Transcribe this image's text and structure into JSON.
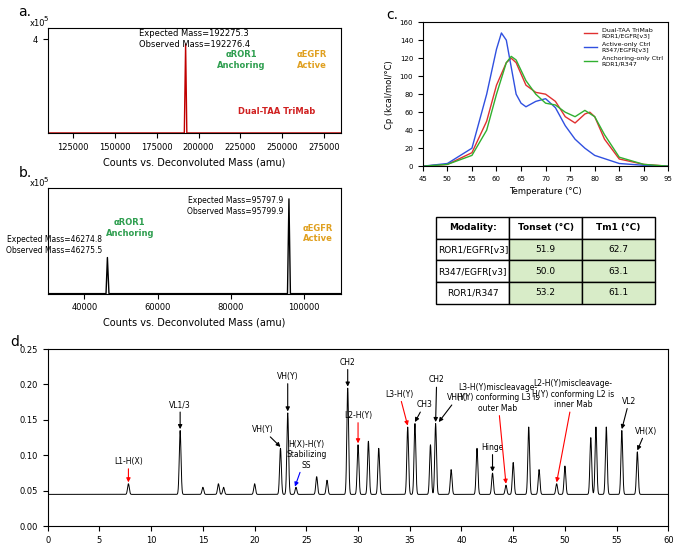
{
  "chart_data": [
    {
      "panel": "a.",
      "type": "line",
      "x": [
        110000,
        191500,
        192276.4,
        193000,
        285000
      ],
      "values": [
        0,
        0,
        3.8,
        0,
        0
      ],
      "color": "#c00000",
      "xlim": [
        110000,
        285000
      ],
      "xticks": [
        125000,
        150000,
        175000,
        200000,
        225000,
        250000,
        275000
      ],
      "ylim": [
        0,
        4.5
      ],
      "yticks": [
        4
      ],
      "xlabel": "Counts vs. Deconvoluted Mass (amu)",
      "y_scale_label": "x10",
      "y_scale_exponent": "5",
      "annotations": [
        "Expected Mass=192275.3",
        "Observed Mass=192276.4"
      ],
      "labels": [
        {
          "text": "αROR1\nAnchoring",
          "color": "#2e9e4f"
        },
        {
          "text": "αEGFR\nActive",
          "color": "#e0a020"
        },
        {
          "text": "Dual-TAA TriMab",
          "color": "#d02020"
        }
      ]
    },
    {
      "panel": "b.",
      "type": "line",
      "x": [
        30000,
        45900,
        46275.5,
        46700,
        95400,
        95799.9,
        96200,
        110000
      ],
      "values": [
        0,
        0,
        2.4,
        0,
        0,
        6.3,
        0,
        0
      ],
      "color": "#000000",
      "xlim": [
        30000,
        110000
      ],
      "xticks": [
        40000,
        60000,
        80000,
        100000
      ],
      "ylim": [
        0,
        7
      ],
      "yticks": [],
      "xlabel": "Counts vs. Deconvoluted Mass (amu)",
      "y_scale_label": "x10",
      "y_scale_exponent": "5",
      "peak_annotations": [
        {
          "x": 46275.5,
          "y": 2.4,
          "text": "Expected Mass=46274.8\nObserved Mass=46275.5"
        },
        {
          "x": 95799.9,
          "y": 6.3,
          "text": "Expected Mass=95797.9\nObserved Mass=95799.9"
        }
      ],
      "labels": [
        {
          "text": "αROR1\nAnchoring",
          "color": "#2e9e4f"
        },
        {
          "text": "αEGFR\nActive",
          "color": "#e0a020"
        }
      ]
    },
    {
      "panel": "c.",
      "type": "line",
      "xlabel": "Temperature (°C)",
      "ylabel": "Cp (kcal/mol/°C)",
      "xlim": [
        45,
        95
      ],
      "xticks": [
        45,
        50,
        55,
        60,
        65,
        70,
        75,
        80,
        85,
        90,
        95
      ],
      "ylim": [
        0,
        160
      ],
      "yticks": [
        0,
        20,
        40,
        60,
        80,
        100,
        120,
        140,
        160
      ],
      "legend": "upper right",
      "series": [
        {
          "name": "Dual-TAA TriMab\nROR1/EGFR[v3]",
          "color": "#e03030",
          "x": [
            45,
            50,
            55,
            58,
            60,
            62,
            63,
            64,
            66,
            68,
            70,
            72,
            74,
            76,
            78,
            79,
            80,
            82,
            85,
            90,
            95
          ],
          "values": [
            0,
            2,
            15,
            50,
            90,
            115,
            120,
            115,
            90,
            82,
            80,
            72,
            55,
            48,
            58,
            60,
            55,
            30,
            8,
            2,
            0
          ]
        },
        {
          "name": "Active-only Ctrl\nR347/EGFR[v3]",
          "color": "#3050e0",
          "x": [
            45,
            50,
            55,
            58,
            60,
            61,
            62,
            63,
            64,
            65,
            66,
            68,
            70,
            72,
            74,
            76,
            78,
            80,
            85,
            90,
            95
          ],
          "values": [
            0,
            3,
            20,
            80,
            130,
            148,
            140,
            110,
            80,
            70,
            66,
            72,
            75,
            65,
            45,
            30,
            20,
            12,
            3,
            1,
            0
          ]
        },
        {
          "name": "Anchoring-only Ctrl\nROR1/R347",
          "color": "#30b030",
          "x": [
            45,
            50,
            55,
            58,
            60,
            62,
            63,
            64,
            66,
            68,
            70,
            72,
            74,
            76,
            78,
            80,
            82,
            85,
            90,
            95
          ],
          "values": [
            0,
            2,
            12,
            40,
            80,
            115,
            122,
            118,
            95,
            80,
            70,
            68,
            60,
            55,
            62,
            55,
            35,
            10,
            2,
            0
          ]
        }
      ]
    },
    {
      "panel": "d.",
      "type": "line",
      "baseline": 0.045,
      "xlim": [
        0,
        60
      ],
      "xticks": [
        0,
        5,
        10,
        15,
        20,
        25,
        30,
        35,
        40,
        45,
        50,
        55,
        60
      ],
      "ylim": [
        0,
        0.25
      ],
      "yticks": [
        {
          "value": 0.0,
          "label": "0.00"
        },
        {
          "value": 0.05,
          "label": "0.05"
        },
        {
          "value": 0.1,
          "label": "0.10"
        },
        {
          "value": 0.15,
          "label": "0.15"
        },
        {
          "value": 0.2,
          "label": "0.20"
        },
        {
          "value": 0.25,
          "label": "0.25"
        }
      ],
      "peaks": {
        "x": [
          7.8,
          12.8,
          15,
          16.5,
          17,
          20,
          22.5,
          23.2,
          24,
          26,
          27,
          29,
          30,
          31,
          32,
          34.8,
          35.5,
          37,
          37.5,
          39,
          41.5,
          43,
          44.3,
          45,
          46.5,
          47.5,
          49.2,
          50,
          52.5,
          53,
          54,
          55.5,
          57
        ],
        "values": [
          0.06,
          0.135,
          0.055,
          0.06,
          0.055,
          0.06,
          0.11,
          0.16,
          0.055,
          0.07,
          0.065,
          0.195,
          0.115,
          0.12,
          0.11,
          0.14,
          0.145,
          0.115,
          0.145,
          0.08,
          0.11,
          0.075,
          0.058,
          0.09,
          0.14,
          0.08,
          0.06,
          0.085,
          0.125,
          0.14,
          0.14,
          0.135,
          0.105
        ]
      },
      "annotations": [
        {
          "text": "L1-H(X)",
          "x": 7.8,
          "y": 0.062,
          "color": "red"
        },
        {
          "text": "VL1/3",
          "x": 12.8,
          "y": 0.137,
          "color": "black"
        },
        {
          "text": "VH(Y)",
          "x": 23.2,
          "y": 0.162,
          "color": "black"
        },
        {
          "text": "VH(Y)",
          "x": 22.5,
          "y": 0.112,
          "color": "black"
        },
        {
          "text": "H(X)-H(Y)\nStabilizing\nSS",
          "x": 23.9,
          "y": 0.056,
          "color": "blue"
        },
        {
          "text": "CH2",
          "x": 29,
          "y": 0.197,
          "color": "black"
        },
        {
          "text": "L2-H(Y)",
          "x": 30,
          "y": 0.117,
          "color": "red"
        },
        {
          "text": "L3-H(Y)",
          "x": 34.8,
          "y": 0.142,
          "color": "red"
        },
        {
          "text": "CH3",
          "x": 35.5,
          "y": 0.147,
          "color": "black"
        },
        {
          "text": "CH2",
          "x": 37.5,
          "y": 0.147,
          "color": "black"
        },
        {
          "text": "VH(Y)",
          "x": 37.8,
          "y": 0.147,
          "color": "black"
        },
        {
          "text": "Hinge",
          "x": 43,
          "y": 0.077,
          "color": "black"
        },
        {
          "text": "L3-H(Y)miscleavage-\nH(Y) conforming L3 is\nouter Mab",
          "x": 44.3,
          "y": 0.06,
          "color": "red"
        },
        {
          "text": "L2-H(Y)miscleavage-\nH(Y) conforming L2 is\ninner Mab",
          "x": 49.2,
          "y": 0.062,
          "color": "red"
        },
        {
          "text": "VL2",
          "x": 55.5,
          "y": 0.137,
          "color": "black"
        },
        {
          "text": "VH(X)",
          "x": 57,
          "y": 0.107,
          "color": "black"
        }
      ]
    }
  ],
  "table": {
    "header": [
      "Modality:",
      "Tonset (°C)",
      "Tm1 (°C)"
    ],
    "rows": [
      [
        "ROR1/EGFR[v3]",
        "51.9",
        "62.7"
      ],
      [
        "R347/EGFR[v3]",
        "50.0",
        "63.1"
      ],
      [
        "ROR1/R347",
        "53.2",
        "61.1"
      ]
    ]
  }
}
